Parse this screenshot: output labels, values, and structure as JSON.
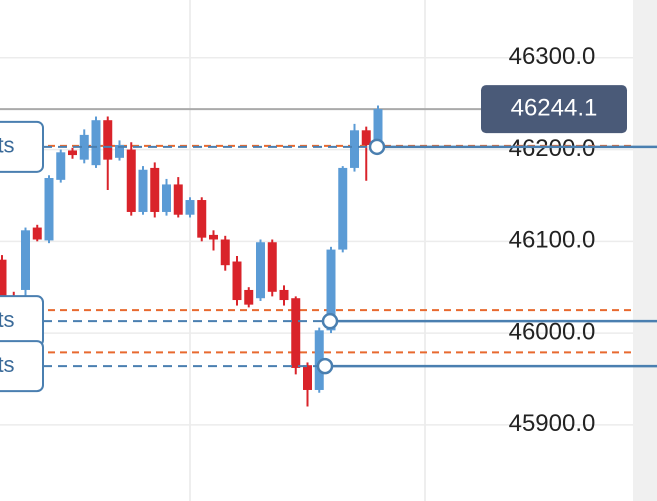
{
  "chart_data": {
    "type": "candlestick",
    "up_color": "#5b9bd5",
    "down_color": "#d9232a",
    "open": [
      46080,
      46039,
      46047,
      46115,
      46101,
      46167,
      46199,
      46189,
      46183,
      46232,
      46191,
      46200,
      46132,
      46180,
      46132,
      46162,
      46129,
      46145,
      46107,
      46102,
      46078,
      46047,
      46038,
      46099,
      46047,
      46038,
      45965,
      45938,
      46003,
      46091,
      46180,
      46221,
      46205
    ],
    "high": [
      46085,
      46045,
      46115,
      46118,
      46172,
      46200,
      46202,
      46222,
      46236,
      46236,
      46210,
      46208,
      46182,
      46186,
      46168,
      46170,
      46148,
      46148,
      46112,
      46106,
      46084,
      46050,
      46102,
      46102,
      46052,
      46040,
      45968,
      46006,
      46094,
      46182,
      46228,
      46225,
      46248
    ],
    "low": [
      46030,
      46020,
      46040,
      46100,
      46098,
      46164,
      46190,
      46185,
      46180,
      46156,
      46188,
      46128,
      46129,
      46126,
      46128,
      46126,
      46126,
      46100,
      46090,
      46068,
      46030,
      46028,
      46035,
      46040,
      46030,
      45955,
      45920,
      45935,
      46000,
      46088,
      46176,
      46166,
      46202
    ],
    "close": [
      46037,
      46025,
      46112,
      46102,
      46169,
      46197,
      46194,
      46216,
      46232,
      46189,
      46205,
      46132,
      46178,
      46132,
      46162,
      46129,
      46145,
      46104,
      46102,
      46074,
      46036,
      46031,
      46099,
      46045,
      46036,
      45962,
      45938,
      46003,
      46091,
      46180,
      46221,
      46205,
      46244.1
    ],
    "ylim": [
      45817,
      46363
    ],
    "yticks": [
      {
        "value": 45900,
        "label": "45900.0"
      },
      {
        "value": 46000,
        "label": "46000.0"
      },
      {
        "value": 46100,
        "label": "46100.0"
      },
      {
        "value": 46200,
        "label": "46200.0"
      },
      {
        "value": 46300,
        "label": "46300.0"
      }
    ],
    "grid": true,
    "current_price": {
      "value": 46244.1,
      "label": "46244.1",
      "color": "#4a5a78"
    },
    "levels": [
      {
        "value": 46204,
        "color": "#e8692f"
      },
      {
        "value": 46025,
        "color": "#e8692f"
      },
      {
        "value": 45979,
        "color": "#e8692f"
      }
    ],
    "orders": [
      {
        "label": "ts",
        "value": 46203,
        "color": "#4a7fb0"
      },
      {
        "label": "ts",
        "value": 46013,
        "color": "#4a7fb0"
      },
      {
        "label": "ts",
        "value": 45964,
        "color": "#4a7fb0"
      }
    ]
  }
}
